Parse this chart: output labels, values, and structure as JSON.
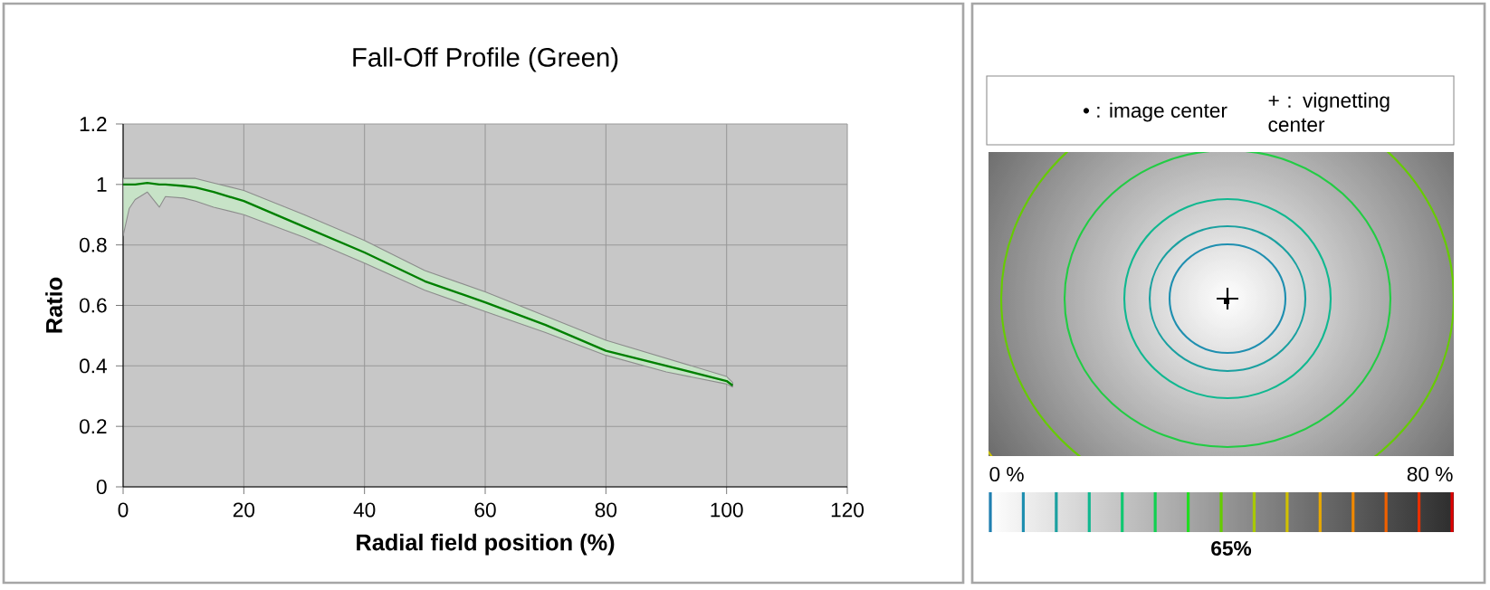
{
  "chart_data": [
    {
      "type": "line",
      "title": "Fall-Off Profile (Green)",
      "xlabel": "Radial field position (%)",
      "ylabel": "Ratio",
      "xlim": [
        0,
        120
      ],
      "xticks": [
        0,
        20,
        40,
        60,
        80,
        100,
        120
      ],
      "ylim": [
        0,
        1.2
      ],
      "yticks": [
        0,
        0.2,
        0.4,
        0.6,
        0.8,
        1,
        1.2
      ],
      "grid": true,
      "series": [
        {
          "color": "#008000",
          "x": [
            0,
            1,
            2,
            4,
            6,
            7,
            10,
            12,
            15,
            20,
            30,
            40,
            50,
            60,
            70,
            80,
            90,
            100,
            101
          ],
          "values": [
            1.0,
            1.0,
            1.0,
            1.005,
            1.0,
            1.0,
            0.995,
            0.99,
            0.975,
            0.945,
            0.86,
            0.775,
            0.68,
            0.61,
            0.535,
            0.45,
            0.4,
            0.35,
            0.335
          ],
          "lower": [
            0.83,
            0.92,
            0.95,
            0.975,
            0.925,
            0.96,
            0.955,
            0.945,
            0.925,
            0.9,
            0.825,
            0.74,
            0.65,
            0.58,
            0.51,
            0.435,
            0.38,
            0.34,
            0.33
          ],
          "upper": [
            1.02,
            1.02,
            1.02,
            1.02,
            1.02,
            1.02,
            1.02,
            1.02,
            1.005,
            0.98,
            0.9,
            0.815,
            0.715,
            0.645,
            0.565,
            0.485,
            0.425,
            0.365,
            0.345
          ]
        }
      ]
    },
    {
      "type": "other",
      "annotations": [
        "• : image center",
        "+ : vignetting center",
        "0 %",
        "80 %",
        "**65%**"
      ]
    }
  ]
}
